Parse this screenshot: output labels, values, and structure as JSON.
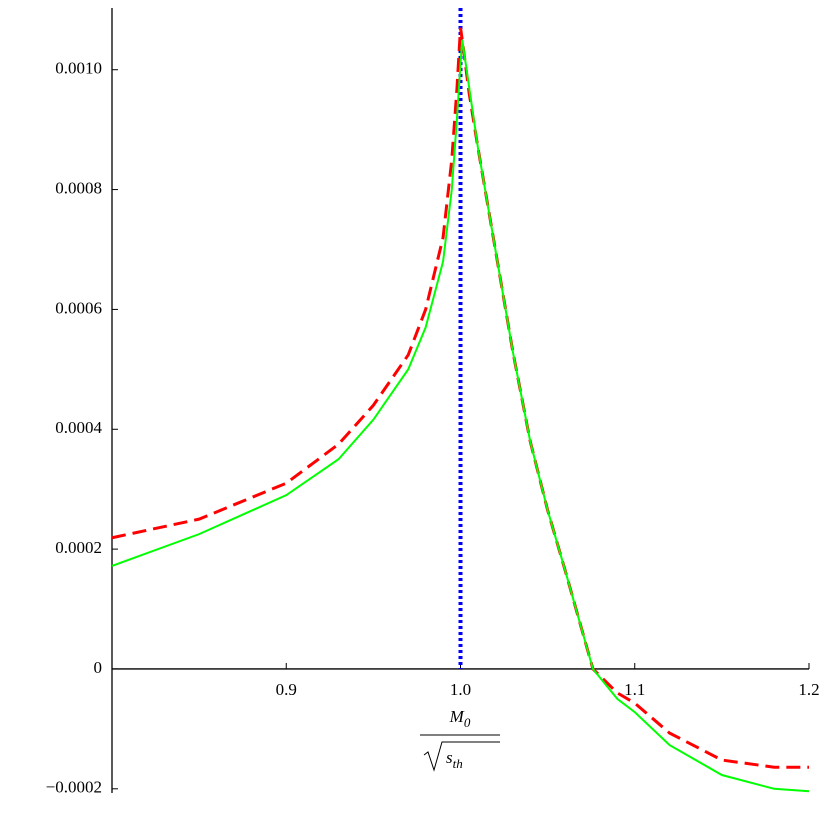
{
  "chart_data": {
    "type": "line",
    "xlabel": {
      "numerator": "M",
      "numerator_sub": "0",
      "denominator": "s",
      "denominator_sub": "th"
    },
    "x": [
      0.8,
      0.85,
      0.9,
      0.93,
      0.95,
      0.97,
      0.98,
      0.99,
      0.995,
      0.998,
      1.0,
      1.001,
      1.005,
      1.01,
      1.02,
      1.03,
      1.04,
      1.05,
      1.06,
      1.076,
      1.09,
      1.1,
      1.12,
      1.15,
      1.18,
      1.2
    ],
    "series": [
      {
        "color": "#ff0000",
        "style": "dashed",
        "values": [
          0.000219,
          0.00025,
          0.00031,
          0.000375,
          0.00044,
          0.000524,
          0.0006,
          0.00072,
          0.00085,
          0.00097,
          0.00107,
          0.00105,
          0.00096,
          0.00087,
          0.0007,
          0.00053,
          0.00038,
          0.000265,
          0.000165,
          0.0,
          -4e-05,
          -5.7e-05,
          -0.000107,
          -0.000152,
          -0.000164,
          -0.000164
        ]
      },
      {
        "color": "#00ff00",
        "style": "solid",
        "values": [
          0.000172,
          0.000225,
          0.00029,
          0.00035,
          0.000416,
          0.0005,
          0.00057,
          0.00068,
          0.0008,
          0.00092,
          0.00101,
          0.00105,
          0.00097,
          0.00087,
          0.0007,
          0.00053,
          0.00038,
          0.000265,
          0.000165,
          0.0,
          -5e-05,
          -7.2e-05,
          -0.000127,
          -0.000177,
          -0.0002,
          -0.000204
        ]
      }
    ],
    "vlines": [
      {
        "x": 1.0,
        "color": "#0000ff",
        "style": "dotted"
      }
    ],
    "xlim": [
      0.8,
      1.2
    ],
    "ylim": [
      -0.000207,
      0.001103
    ],
    "xticks": [
      0.9,
      {
        "value": 1.0,
        "label": "1.0"
      },
      1.1,
      1.2
    ],
    "yticks": [
      {
        "value": -0.0002,
        "label": "−0.0002"
      },
      0,
      0.0002,
      0.0004,
      0.0006,
      0.0008,
      {
        "value": 0.001,
        "label": "0.0010"
      }
    ]
  }
}
